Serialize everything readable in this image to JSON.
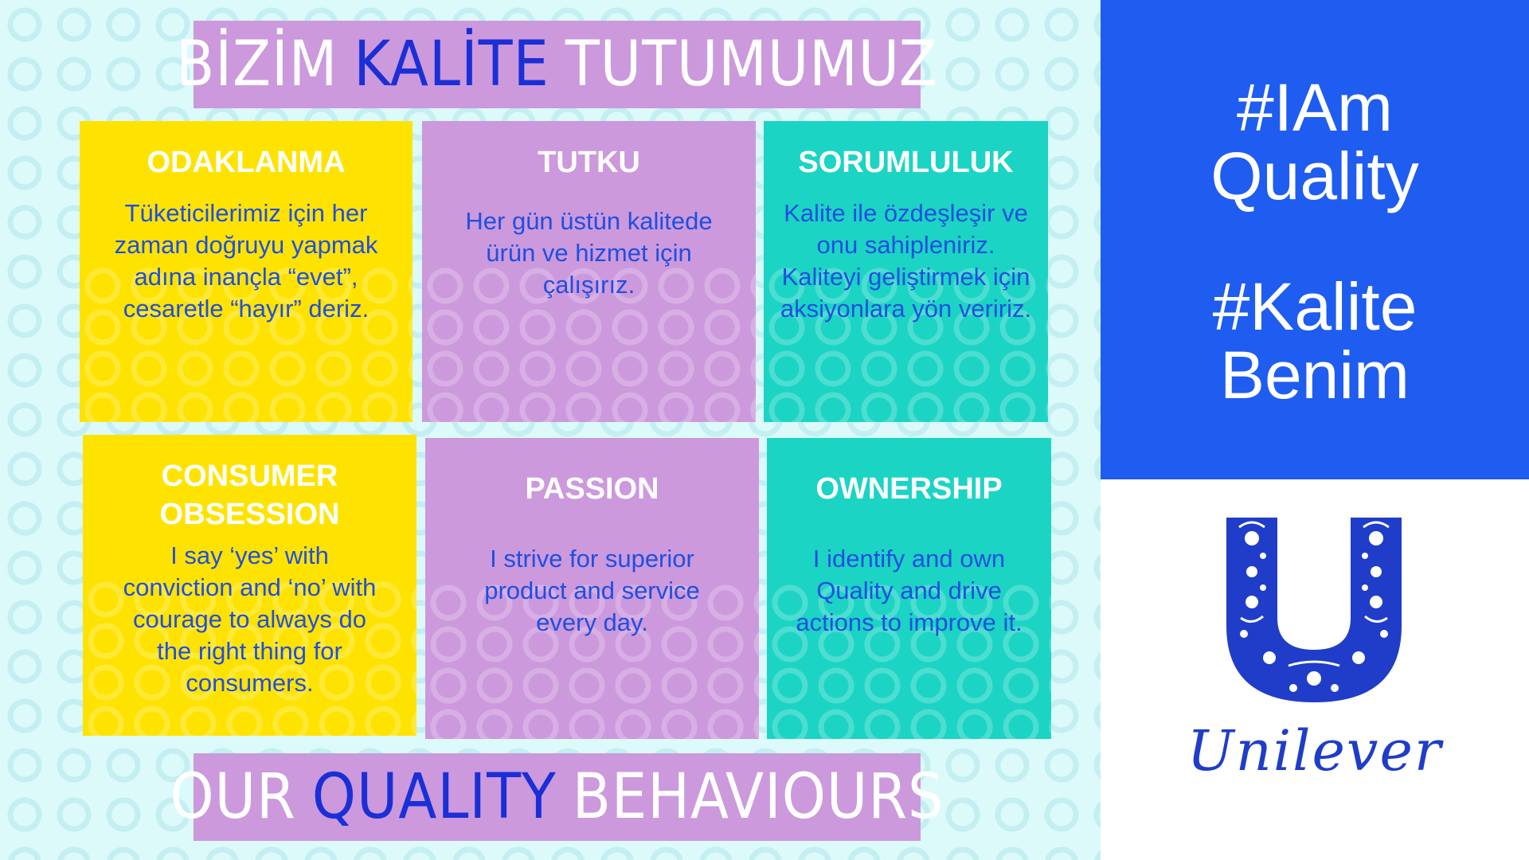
{
  "header": {
    "title_pre": "BİZİM",
    "title_accent": "KALİTE",
    "title_post": "TUTUMUMUZ"
  },
  "footer": {
    "title_pre": "OUR",
    "title_accent": "QUALITY",
    "title_post": "BEHAVIOURS"
  },
  "cards": {
    "odaklanma": {
      "title": "ODAKLANMA",
      "lines": [
        "Tüketicilerimiz için her",
        "zaman doğruyu yapmak",
        "adına inançla “evet”,",
        "cesaretle “hayır” deriz."
      ]
    },
    "tutku": {
      "title": "TUTKU",
      "lines": [
        "Her gün üstün kalitede",
        "ürün ve hizmet için",
        "çalışırız."
      ]
    },
    "sorumluluk": {
      "title": "SORUMLULUK",
      "lines": [
        "Kalite ile özdeşleşir ve",
        "onu sahipleniriz.",
        "Kaliteyi geliştirmek için",
        "aksiyonlara yön veririz."
      ]
    },
    "consumer": {
      "title_line1": "CONSUMER",
      "title_line2": "OBSESSION",
      "lines": [
        "I say ‘yes’ with",
        "conviction and ‘no’ with",
        "courage to always do",
        "the right thing for",
        "consumers."
      ]
    },
    "passion": {
      "title": "PASSION",
      "lines": [
        "I strive for superior",
        "product and service",
        "every day."
      ]
    },
    "ownership": {
      "title": "OWNERSHIP",
      "lines": [
        "I identify and own",
        "Quality and drive",
        "actions to improve it."
      ]
    }
  },
  "hashtags": {
    "quality_line1": "#IAm",
    "quality_line2": "Quality",
    "kalite_line1": "#Kalite",
    "kalite_line2": "Benim"
  },
  "brand": {
    "name": "Unilever",
    "logo_icon": "unilever-u-logo-icon"
  },
  "colors": {
    "yellow": "#ffe300",
    "purple": "#cc99dd",
    "teal": "#1bd4c4",
    "blue_panel": "#1f5cf0",
    "accent_text": "#1a2fd6",
    "body_text": "#1f4fe0"
  }
}
